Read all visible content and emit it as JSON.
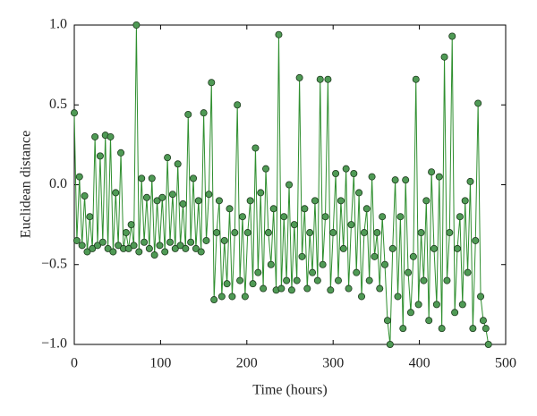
{
  "chart_data": {
    "type": "line",
    "xlabel": "Time (hours)",
    "ylabel": "Euclidean distance",
    "xlim": [
      0,
      500
    ],
    "xticks": [
      0,
      100,
      200,
      300,
      400,
      500
    ],
    "ylim": [
      -1,
      1
    ],
    "yticks": [
      {
        "value": -1,
        "label": "−1.0"
      },
      {
        "value": -0.5,
        "label": "−0.5"
      },
      {
        "value": 0,
        "label": "0.0"
      },
      {
        "value": 0.5,
        "label": "0.5"
      },
      {
        "value": 1,
        "label": "1.0"
      }
    ],
    "grid": false,
    "series": [
      {
        "color": "#2f8f2f",
        "marker_color": "#4f9a55",
        "x": [
          0,
          3,
          6,
          9,
          12,
          15,
          18,
          21,
          24,
          27,
          30,
          33,
          36,
          39,
          42,
          45,
          48,
          51,
          54,
          57,
          60,
          63,
          66,
          69,
          72,
          75,
          78,
          81,
          84,
          87,
          90,
          93,
          96,
          99,
          102,
          105,
          108,
          111,
          114,
          117,
          120,
          123,
          126,
          129,
          132,
          135,
          138,
          141,
          144,
          147,
          150,
          153,
          156,
          159,
          162,
          165,
          168,
          171,
          174,
          177,
          180,
          183,
          186,
          189,
          192,
          195,
          198,
          201,
          204,
          207,
          210,
          213,
          216,
          219,
          222,
          225,
          228,
          231,
          234,
          237,
          240,
          243,
          246,
          249,
          252,
          255,
          258,
          261,
          264,
          267,
          270,
          273,
          276,
          279,
          282,
          285,
          288,
          291,
          294,
          297,
          300,
          303,
          306,
          309,
          312,
          315,
          318,
          321,
          324,
          327,
          330,
          333,
          336,
          339,
          342,
          345,
          348,
          351,
          354,
          357,
          360,
          363,
          366,
          369,
          372,
          375,
          378,
          381,
          384,
          387,
          390,
          393,
          396,
          399,
          402,
          405,
          408,
          411,
          414,
          417,
          420,
          423,
          426,
          429,
          432,
          435,
          438,
          441,
          444,
          447,
          450,
          453,
          456,
          459,
          462,
          465,
          468,
          471,
          474,
          477,
          480
        ],
        "values": [
          0.45,
          -0.35,
          0.05,
          -0.38,
          -0.07,
          -0.42,
          -0.2,
          -0.4,
          0.3,
          -0.38,
          0.18,
          -0.36,
          0.31,
          -0.4,
          0.3,
          -0.42,
          -0.05,
          -0.38,
          0.2,
          -0.4,
          -0.3,
          -0.4,
          -0.25,
          -0.38,
          1.0,
          -0.42,
          0.04,
          -0.36,
          -0.08,
          -0.4,
          0.04,
          -0.44,
          -0.1,
          -0.38,
          -0.08,
          -0.42,
          0.17,
          -0.36,
          -0.06,
          -0.4,
          0.13,
          -0.38,
          -0.12,
          -0.4,
          0.44,
          -0.36,
          0.04,
          -0.4,
          -0.1,
          -0.42,
          0.45,
          -0.35,
          -0.06,
          0.64,
          -0.72,
          -0.3,
          -0.1,
          -0.7,
          -0.35,
          -0.62,
          -0.15,
          -0.7,
          -0.3,
          0.5,
          -0.6,
          -0.2,
          -0.7,
          -0.3,
          -0.1,
          -0.62,
          0.23,
          -0.55,
          -0.05,
          -0.65,
          0.1,
          -0.3,
          -0.5,
          -0.15,
          -0.66,
          0.94,
          -0.65,
          -0.2,
          -0.6,
          0.0,
          -0.66,
          -0.25,
          -0.6,
          0.67,
          -0.45,
          -0.15,
          -0.65,
          -0.3,
          -0.55,
          -0.1,
          -0.6,
          0.66,
          -0.5,
          -0.2,
          0.66,
          -0.66,
          -0.3,
          0.07,
          -0.6,
          -0.1,
          -0.4,
          0.1,
          -0.65,
          -0.25,
          0.07,
          -0.55,
          -0.05,
          -0.7,
          -0.3,
          -0.15,
          -0.6,
          0.05,
          -0.45,
          -0.3,
          -0.65,
          -0.2,
          -0.5,
          -0.85,
          -1.0,
          -0.4,
          0.03,
          -0.7,
          -0.2,
          -0.9,
          0.03,
          -0.55,
          -0.8,
          -0.45,
          0.66,
          -0.75,
          -0.3,
          -0.6,
          -0.1,
          -0.85,
          0.08,
          -0.4,
          -0.75,
          0.05,
          -0.9,
          0.8,
          -0.6,
          -0.3,
          0.93,
          -0.8,
          -0.4,
          -0.2,
          -0.75,
          -0.1,
          -0.55,
          0.02,
          -0.9,
          -0.35,
          0.51,
          -0.7,
          -0.85,
          -0.9,
          -1.0
        ]
      }
    ]
  }
}
